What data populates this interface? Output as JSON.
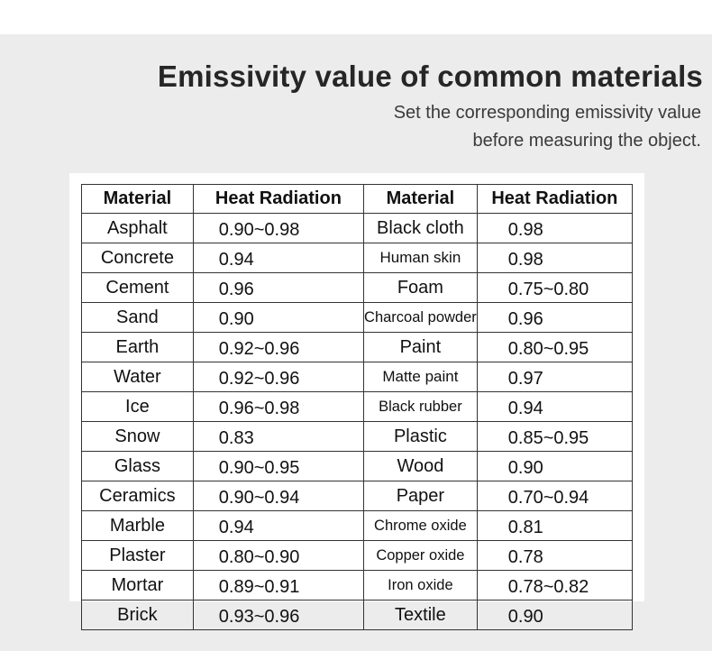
{
  "header": {
    "title": "Emissivity value of common materials",
    "subtitle_line1": "Set the corresponding emissivity value",
    "subtitle_line2": "before measuring the object."
  },
  "table": {
    "columns": [
      "Material",
      "Heat Radiation",
      "Material",
      "Heat Radiation"
    ],
    "rows": [
      {
        "m1": "Asphalt",
        "v1": "0.90~0.98",
        "m2": "Black cloth",
        "v2": "0.98"
      },
      {
        "m1": "Concrete",
        "v1": "0.94",
        "m2": "Human skin",
        "v2": "0.98"
      },
      {
        "m1": "Cement",
        "v1": "0.96",
        "m2": "Foam",
        "v2": "0.75~0.80"
      },
      {
        "m1": "Sand",
        "v1": "0.90",
        "m2": "Charcoal powder",
        "v2": "0.96"
      },
      {
        "m1": "Earth",
        "v1": "0.92~0.96",
        "m2": "Paint",
        "v2": "0.80~0.95"
      },
      {
        "m1": "Water",
        "v1": "0.92~0.96",
        "m2": "Matte paint",
        "v2": "0.97"
      },
      {
        "m1": "Ice",
        "v1": "0.96~0.98",
        "m2": "Black rubber",
        "v2": "0.94"
      },
      {
        "m1": "Snow",
        "v1": "0.83",
        "m2": "Plastic",
        "v2": "0.85~0.95"
      },
      {
        "m1": "Glass",
        "v1": "0.90~0.95",
        "m2": "Wood",
        "v2": "0.90"
      },
      {
        "m1": "Ceramics",
        "v1": "0.90~0.94",
        "m2": "Paper",
        "v2": "0.70~0.94"
      },
      {
        "m1": "Marble",
        "v1": "0.94",
        "m2": "Chrome oxide",
        "v2": "0.81"
      },
      {
        "m1": "Plaster",
        "v1": "0.80~0.90",
        "m2": "Copper oxide",
        "v2": "0.78"
      },
      {
        "m1": "Mortar",
        "v1": "0.89~0.91",
        "m2": "Iron oxide",
        "v2": "0.78~0.82"
      },
      {
        "m1": "Brick",
        "v1": "0.93~0.96",
        "m2": "Textile",
        "v2": "0.90"
      }
    ]
  },
  "colors": {
    "background_band": "#ececec",
    "card": "#ffffff",
    "text": "#111111"
  }
}
